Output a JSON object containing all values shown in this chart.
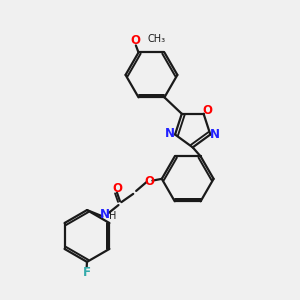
{
  "bg_color": "#f0f0f0",
  "bond_color": "#1a1a1a",
  "N_color": "#2020ff",
  "O_color": "#ff0000",
  "F_color": "#33aaaa",
  "font_size_atom": 8.5,
  "font_size_small": 7.0,
  "lw": 1.6,
  "dbo": 0.055,
  "xlim": [
    0,
    10
  ],
  "ylim": [
    0,
    10
  ]
}
